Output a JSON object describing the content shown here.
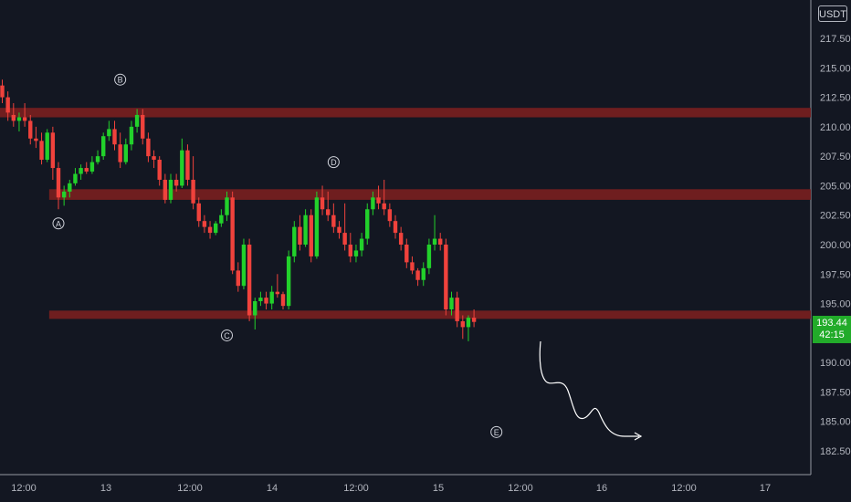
{
  "currency": "USDT",
  "last_price": {
    "value": "193.44",
    "countdown": "42:15"
  },
  "colors": {
    "background": "#131722",
    "up": "#22d12b",
    "down": "#f0423c",
    "zone": "#7a1f1f",
    "axis_text": "#b2b5be",
    "annotation": "#d1d4dc"
  },
  "chart_data": {
    "type": "candlestick",
    "y_ticks": [
      "217.50",
      "215.00",
      "212.50",
      "210.00",
      "207.50",
      "205.00",
      "202.50",
      "200.00",
      "197.50",
      "195.00",
      "190.00",
      "187.50",
      "185.00",
      "182.50"
    ],
    "ylim": [
      181.0,
      219.5
    ],
    "x_ticks": [
      "12:00",
      "13",
      "12:00",
      "14",
      "12:00",
      "15",
      "12:00",
      "16",
      "12:00",
      "17"
    ],
    "zones": [
      {
        "low": 210.8,
        "high": 211.6,
        "from_bar": 0
      },
      {
        "low": 203.8,
        "high": 204.7,
        "from_bar": 9
      },
      {
        "low": 193.7,
        "high": 194.4,
        "from_bar": 9
      }
    ],
    "labels": [
      {
        "text": "A",
        "bar": 10,
        "price": 201.8
      },
      {
        "text": "B",
        "bar": 21,
        "price": 214.0
      },
      {
        "text": "C",
        "bar": 40,
        "price": 192.3
      },
      {
        "text": "D",
        "bar": 59,
        "price": 207.0
      },
      {
        "text": "E",
        "bar": 88,
        "price": 184.1
      }
    ],
    "candles": [
      [
        213.5,
        214.0,
        212.0,
        212.5
      ],
      [
        212.5,
        213.0,
        210.5,
        211.2
      ],
      [
        211.0,
        212.0,
        210.0,
        210.5
      ],
      [
        210.5,
        211.2,
        209.6,
        210.8
      ],
      [
        210.8,
        212.0,
        210.0,
        210.5
      ],
      [
        210.5,
        211.0,
        208.5,
        209.0
      ],
      [
        209.0,
        210.0,
        208.2,
        208.8
      ],
      [
        208.8,
        209.5,
        206.8,
        207.2
      ],
      [
        207.2,
        209.8,
        207.0,
        209.5
      ],
      [
        209.5,
        210.0,
        205.5,
        206.5
      ],
      [
        206.5,
        207.0,
        203.0,
        204.0
      ],
      [
        204.0,
        205.0,
        203.3,
        204.5
      ],
      [
        204.5,
        205.5,
        204.0,
        205.2
      ],
      [
        205.2,
        206.5,
        205.0,
        206.0
      ],
      [
        206.0,
        206.8,
        205.5,
        206.5
      ],
      [
        206.5,
        207.0,
        206.0,
        206.2
      ],
      [
        206.2,
        207.5,
        206.0,
        207.0
      ],
      [
        207.0,
        208.0,
        206.8,
        207.5
      ],
      [
        207.5,
        209.5,
        207.2,
        209.2
      ],
      [
        209.2,
        210.5,
        208.8,
        209.8
      ],
      [
        209.8,
        210.5,
        208.0,
        208.5
      ],
      [
        208.5,
        209.5,
        206.5,
        207.0
      ],
      [
        207.0,
        209.0,
        206.8,
        208.5
      ],
      [
        208.5,
        210.5,
        208.0,
        210.0
      ],
      [
        210.0,
        211.5,
        209.5,
        211.0
      ],
      [
        211.0,
        211.5,
        208.5,
        209.0
      ],
      [
        209.0,
        209.5,
        207.0,
        207.5
      ],
      [
        207.5,
        208.0,
        206.5,
        207.2
      ],
      [
        207.2,
        207.5,
        205.0,
        205.5
      ],
      [
        205.5,
        206.0,
        203.5,
        203.8
      ],
      [
        203.8,
        206.0,
        203.5,
        205.5
      ],
      [
        205.5,
        206.0,
        204.5,
        205.0
      ],
      [
        205.0,
        209.0,
        204.8,
        208.0
      ],
      [
        208.0,
        208.5,
        205.0,
        205.5
      ],
      [
        205.5,
        207.5,
        203.0,
        203.5
      ],
      [
        203.5,
        204.0,
        201.5,
        202.0
      ],
      [
        202.0,
        202.5,
        201.0,
        201.5
      ],
      [
        201.5,
        202.0,
        200.5,
        201.0
      ],
      [
        201.0,
        202.0,
        200.8,
        201.8
      ],
      [
        201.8,
        203.0,
        201.5,
        202.5
      ],
      [
        202.5,
        204.5,
        202.0,
        204.0
      ],
      [
        204.0,
        204.5,
        197.5,
        197.8
      ],
      [
        197.8,
        198.5,
        196.0,
        196.5
      ],
      [
        196.5,
        200.5,
        196.2,
        200.0
      ],
      [
        200.0,
        200.5,
        193.5,
        194.0
      ],
      [
        194.0,
        195.5,
        192.8,
        195.2
      ],
      [
        195.2,
        196.0,
        194.8,
        195.5
      ],
      [
        195.5,
        196.0,
        194.5,
        195.0
      ],
      [
        195.0,
        196.5,
        194.5,
        196.0
      ],
      [
        196.0,
        197.5,
        195.5,
        195.8
      ],
      [
        195.8,
        196.0,
        194.5,
        194.8
      ],
      [
        194.8,
        199.5,
        194.5,
        199.0
      ],
      [
        199.0,
        202.0,
        198.5,
        201.5
      ],
      [
        201.5,
        202.5,
        199.5,
        200.0
      ],
      [
        200.0,
        203.0,
        199.8,
        202.5
      ],
      [
        202.5,
        203.0,
        198.5,
        199.0
      ],
      [
        199.0,
        204.5,
        198.8,
        204.0
      ],
      [
        204.0,
        205.0,
        202.5,
        203.0
      ],
      [
        203.0,
        204.5,
        202.0,
        202.5
      ],
      [
        202.5,
        203.5,
        201.0,
        201.5
      ],
      [
        201.5,
        202.0,
        200.5,
        201.0
      ],
      [
        201.0,
        203.5,
        199.5,
        200.0
      ],
      [
        200.0,
        201.0,
        198.5,
        199.0
      ],
      [
        199.0,
        200.0,
        198.5,
        199.5
      ],
      [
        199.5,
        201.0,
        199.0,
        200.5
      ],
      [
        200.5,
        203.5,
        200.0,
        203.0
      ],
      [
        203.0,
        204.5,
        202.5,
        204.0
      ],
      [
        204.0,
        205.0,
        203.0,
        203.5
      ],
      [
        203.5,
        205.5,
        202.5,
        203.0
      ],
      [
        203.0,
        203.5,
        201.5,
        202.0
      ],
      [
        202.0,
        202.5,
        200.5,
        201.0
      ],
      [
        201.0,
        201.5,
        199.5,
        200.0
      ],
      [
        200.0,
        200.5,
        198.0,
        198.5
      ],
      [
        198.5,
        199.0,
        197.5,
        197.8
      ],
      [
        197.8,
        198.0,
        196.5,
        197.0
      ],
      [
        197.0,
        198.5,
        196.5,
        198.0
      ],
      [
        198.0,
        200.5,
        197.5,
        200.0
      ],
      [
        200.0,
        202.5,
        199.5,
        200.5
      ],
      [
        200.5,
        201.0,
        199.5,
        200.0
      ],
      [
        200.0,
        200.5,
        194.0,
        194.5
      ],
      [
        194.5,
        196.0,
        194.0,
        195.5
      ],
      [
        195.5,
        196.0,
        193.0,
        193.5
      ],
      [
        193.5,
        194.0,
        192.0,
        193.0
      ],
      [
        193.0,
        194.0,
        191.8,
        193.8
      ],
      [
        193.8,
        194.5,
        193.0,
        193.44
      ]
    ],
    "projection_path_hint": "hand-drawn downward curve ending at label E"
  }
}
